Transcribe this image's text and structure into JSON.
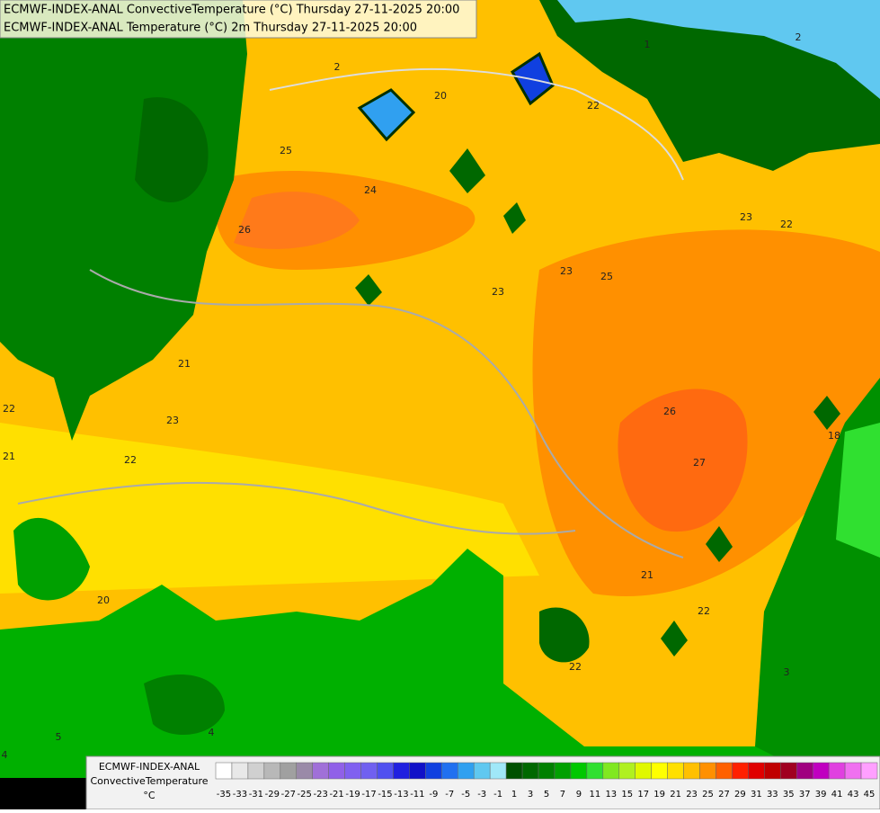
{
  "header": {
    "lines": [
      "ECMWF-INDEX-ANAL ConvectiveTemperature (°C) Thursday 27-11-2025 20:00",
      "ECMWF-INDEX-ANAL Temperature (°C) 2m Thursday 27-11-2025 20:00"
    ]
  },
  "legend": {
    "title": [
      "ECMWF-INDEX-ANAL",
      "ConvectiveTemperature",
      "°C"
    ],
    "labels": [
      -35,
      -33,
      -31,
      -29,
      -27,
      -25,
      -23,
      -21,
      -19,
      -17,
      -15,
      -13,
      -11,
      -9,
      -7,
      -5,
      -3,
      -1,
      1,
      3,
      5,
      7,
      9,
      11,
      13,
      15,
      17,
      19,
      21,
      23,
      25,
      27,
      29,
      31,
      33,
      35,
      37,
      39,
      41,
      43,
      45
    ],
    "colors": [
      "#ffffff",
      "#e8e8e8",
      "#d0d0d0",
      "#b8b8b8",
      "#a0a0a0",
      "#9a8aa8",
      "#a070d8",
      "#9060e8",
      "#8060f0",
      "#7060f0",
      "#5050f0",
      "#2020e0",
      "#1010c8",
      "#1040e0",
      "#2070f0",
      "#30a0f0",
      "#60c8f0",
      "#a0e8f8",
      "#005000",
      "#006800",
      "#008000",
      "#00a000",
      "#00c800",
      "#30e030",
      "#80e820",
      "#b0f020",
      "#e0f800",
      "#ffff00",
      "#ffe000",
      "#ffc000",
      "#ff9000",
      "#ff6000",
      "#ff2000",
      "#e00000",
      "#c00000",
      "#a00020",
      "#a00080",
      "#c000c0",
      "#e040e0",
      "#f070f0",
      "#ffa0ff"
    ]
  },
  "contour_labels": [
    "20",
    "22",
    "25",
    "24",
    "26",
    "23",
    "23",
    "25",
    "23",
    "22",
    "21",
    "22",
    "23",
    "22",
    "21",
    "26",
    "27",
    "18",
    "20",
    "22",
    "22",
    "21",
    "2",
    "1",
    "2",
    "3",
    "4",
    "5",
    "4"
  ]
}
